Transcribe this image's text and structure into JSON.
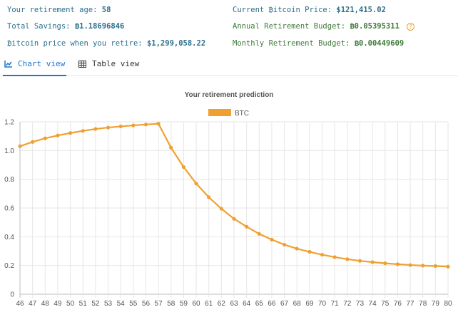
{
  "stats": {
    "retirement_age_label": "Your retirement age:",
    "retirement_age_value": "58",
    "total_savings_label": "Total Savings:",
    "total_savings_value": "₿1.18696846",
    "btc_price_retire_label": "₿itcoin price when you retire:",
    "btc_price_retire_value": "$1,299,058.22",
    "current_price_label": "Current ₿itcoin Price:",
    "current_price_value": "$121,415.02",
    "annual_budget_label": "Annual Retirement Budget:",
    "annual_budget_value": "₿0.05395311",
    "monthly_budget_label": "Monthly Retirement Budget:",
    "monthly_budget_value": "₿0.00449609",
    "help_glyph": "?"
  },
  "tabs": {
    "chart_view": "Chart view",
    "table_view": "Table view",
    "chart_icon": "chart-icon",
    "table_icon": "table-grid-icon"
  },
  "colors": {
    "series": "#f0a030",
    "accent": "#1976d2",
    "stat_blue": "#2a6f8c",
    "stat_green": "#3f7a3a",
    "grid": "#e6e6e6"
  },
  "chart_data": {
    "type": "line",
    "title": "Your retirement prediction",
    "xlabel": "",
    "ylabel": "",
    "x": [
      46,
      47,
      48,
      49,
      50,
      51,
      52,
      53,
      54,
      55,
      56,
      57,
      58,
      59,
      60,
      61,
      62,
      63,
      64,
      65,
      66,
      67,
      68,
      69,
      70,
      71,
      72,
      73,
      74,
      75,
      76,
      77,
      78,
      79,
      80
    ],
    "series": [
      {
        "name": "BTC",
        "values": [
          1.03,
          1.06,
          1.085,
          1.105,
          1.122,
          1.137,
          1.15,
          1.16,
          1.168,
          1.175,
          1.181,
          1.187,
          1.02,
          0.885,
          0.77,
          0.675,
          0.595,
          0.525,
          0.47,
          0.42,
          0.38,
          0.345,
          0.317,
          0.295,
          0.275,
          0.258,
          0.244,
          0.232,
          0.223,
          0.215,
          0.209,
          0.203,
          0.199,
          0.196,
          0.192
        ]
      }
    ],
    "ylim": [
      0,
      1.2
    ],
    "yticks": [
      "0",
      "0.2",
      "0.4",
      "0.6",
      "0.8",
      "1.0",
      "1.2"
    ],
    "grid": true,
    "legend_position": "top-center"
  }
}
